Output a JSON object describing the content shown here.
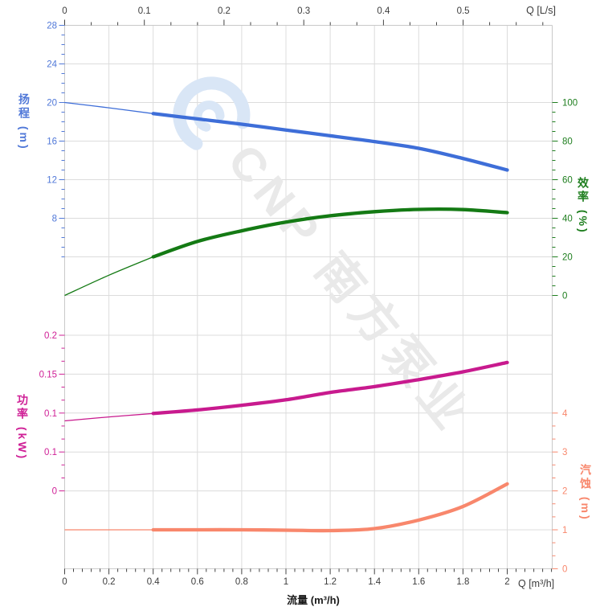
{
  "watermark": {
    "text": "CNP 南方泵业",
    "logo_icon": "cnp-swirl-logo",
    "text_color": "#e9e9e9",
    "logo_color": "#d9e6f6"
  },
  "titles": {
    "flow_axis_title": "流量 (m³/h)",
    "top_axis_unit": "Q [L/s]",
    "bottom_axis_unit": "Q [m³/h]",
    "head_axis_title": "扬程 (m)",
    "efficiency_axis_title": "效率 (%)",
    "power_axis_title": "功率 (kW)",
    "npsh_axis_title": "汽蚀 (m)"
  },
  "colors": {
    "head": "#3e6ed8",
    "efficiency": "#147a14",
    "power": "#c81a8e",
    "npsh": "#f8876c",
    "head_label": "#5078d8",
    "efficiency_label": "#1e7e1e",
    "power_label": "#cf1f96",
    "npsh_label": "#f8876c",
    "axis_text": "#3c3c3c",
    "grid": "#dcdcdc",
    "border": "#c9c9c9",
    "tick": "#444444"
  },
  "chart_data": {
    "type": "line",
    "title": "",
    "x_axis": {
      "bottom": {
        "unit": "Q [m³/h]",
        "title": "流量 (m³/h)",
        "tick_labels": [
          "0",
          "0.2",
          "0.4",
          "0.6",
          "0.8",
          "1",
          "1.2",
          "1.4",
          "1.6",
          "1.8",
          "2"
        ],
        "tick_values": [
          0,
          0.2,
          0.4,
          0.6,
          0.8,
          1,
          1.2,
          1.4,
          1.6,
          1.8,
          2
        ],
        "range": [
          0,
          2.2
        ],
        "grid": true
      },
      "top": {
        "unit": "Q [L/s]",
        "tick_labels": [
          "0",
          "0.1",
          "0.2",
          "0.3",
          "0.4",
          "0.5"
        ],
        "tick_values": [
          0,
          0.1,
          0.2,
          0.3,
          0.4,
          0.5
        ],
        "range": [
          0,
          0.61
        ]
      }
    },
    "y_axes": {
      "head": {
        "title": "扬程 (m)",
        "side": "left",
        "panel": "upper",
        "tick_labels": [
          "28",
          "24",
          "20",
          "16",
          "12",
          "8"
        ],
        "tick_values": [
          28,
          24,
          20,
          16,
          12,
          8
        ]
      },
      "efficiency": {
        "title": "效率 (%)",
        "side": "right",
        "panel": "upper",
        "tick_labels": [
          "100",
          "80",
          "60",
          "40",
          "20",
          "0"
        ],
        "tick_values": [
          100,
          80,
          60,
          40,
          20,
          0
        ]
      },
      "power": {
        "title": "功率 (kW)",
        "side": "left",
        "panel": "lower",
        "tick_labels": [
          "0.2",
          "0.15",
          "0.1",
          "0.1",
          "0"
        ],
        "tick_values": [
          0.2,
          0.15,
          0.1,
          0.05,
          0
        ]
      },
      "npsh": {
        "title": "汽蚀 (m)",
        "side": "right",
        "panel": "lower",
        "tick_labels": [
          "4",
          "3",
          "2",
          "1",
          "0"
        ],
        "tick_values": [
          4,
          3,
          2,
          1,
          0
        ]
      }
    },
    "series": [
      {
        "name": "head",
        "axis": "head",
        "thin_until_x": 0.4,
        "x": [
          0,
          0.2,
          0.4,
          0.6,
          0.8,
          1,
          1.2,
          1.4,
          1.6,
          1.8,
          2
        ],
        "y": [
          20.0,
          19.45,
          18.85,
          18.3,
          17.75,
          17.15,
          16.55,
          15.95,
          15.25,
          14.2,
          13.0
        ]
      },
      {
        "name": "efficiency",
        "axis": "efficiency",
        "thin_until_x": 0.4,
        "x": [
          0,
          0.2,
          0.4,
          0.6,
          0.8,
          1,
          1.2,
          1.4,
          1.6,
          1.8,
          2
        ],
        "y": [
          0,
          10.5,
          20,
          28,
          33.5,
          38,
          41.3,
          43.4,
          44.6,
          44.5,
          42.9
        ]
      },
      {
        "name": "power",
        "axis": "power",
        "thin_until_x": 0.4,
        "x": [
          0,
          0.2,
          0.4,
          0.6,
          0.8,
          1,
          1.2,
          1.4,
          1.6,
          1.8,
          2
        ],
        "y": [
          0.09,
          0.095,
          0.0995,
          0.104,
          0.11,
          0.117,
          0.1265,
          0.134,
          0.143,
          0.153,
          0.165
        ]
      },
      {
        "name": "npsh",
        "axis": "npsh",
        "thin_until_x": 0.4,
        "x": [
          0,
          0.2,
          0.4,
          0.6,
          0.8,
          1,
          1.2,
          1.4,
          1.6,
          1.8,
          2
        ],
        "y": [
          1.0,
          1.0,
          1.0,
          1.0,
          1.0,
          0.99,
          0.98,
          1.03,
          1.25,
          1.6,
          2.18
        ]
      }
    ]
  }
}
